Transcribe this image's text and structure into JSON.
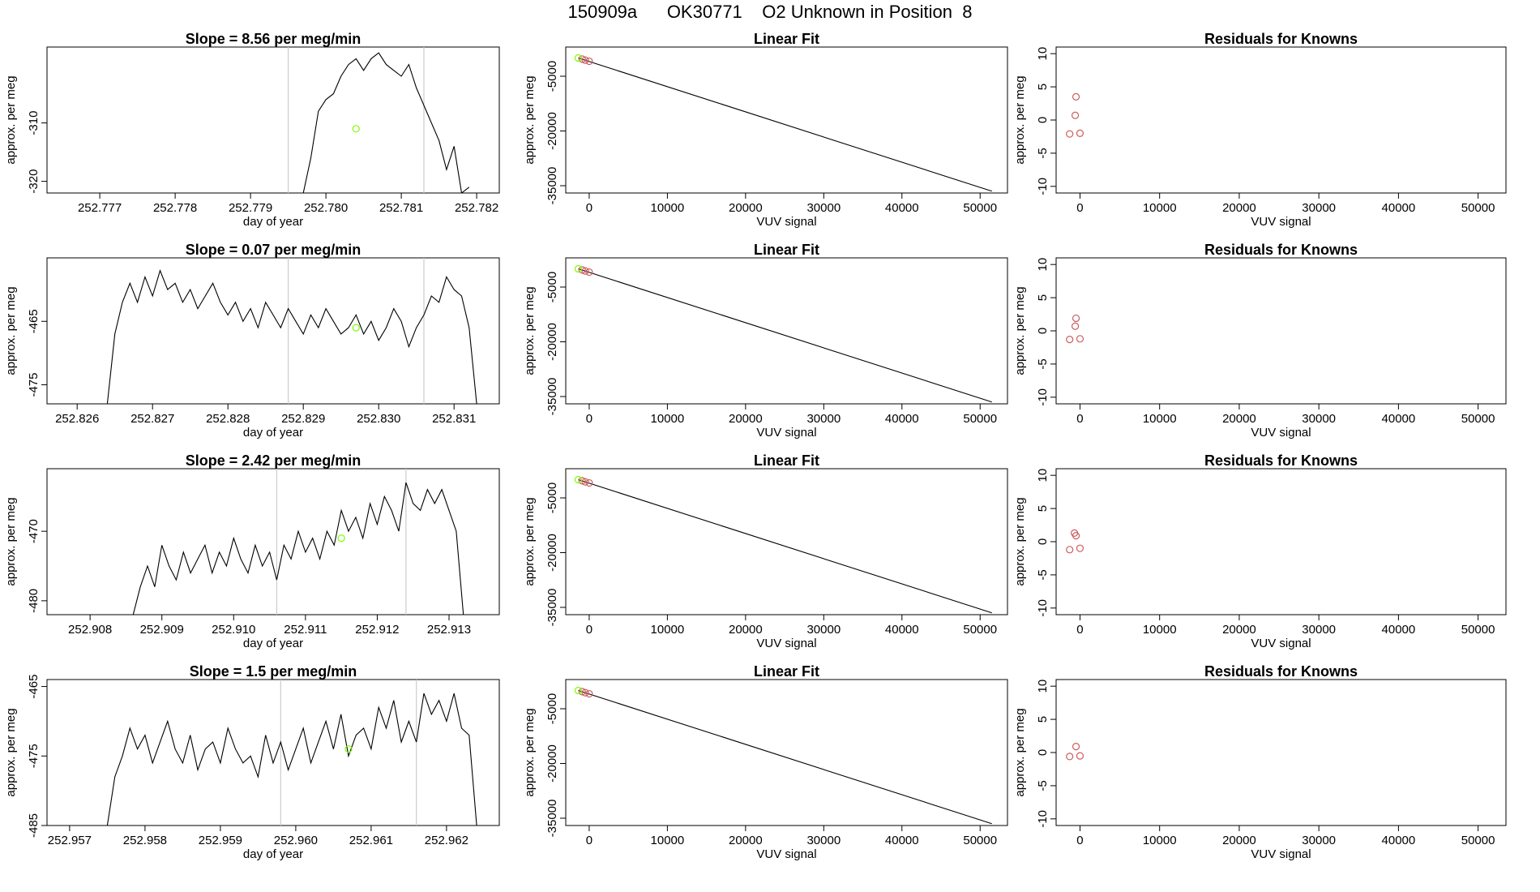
{
  "page_title": "150909a      OK30771    O2 Unknown in Position  8",
  "colors": {
    "trace": "#000000",
    "known_fit_point": "#cd5c5c",
    "unknown_point": "#7cfc00",
    "reference_marker": "#cccccc",
    "fit_line": "#000000"
  },
  "chart_data": [
    {
      "id": "row1-trace",
      "type": "line",
      "title": "Slope =  8.56  per meg/min",
      "xlabel": "day of year",
      "ylabel": "approx. per meg",
      "xlim": [
        252.7763,
        252.7823
      ],
      "ylim": [
        -322,
        -297
      ],
      "xticks": [
        "252.777",
        "252.778",
        "252.779",
        "252.780",
        "252.781",
        "252.782"
      ],
      "xtick_values": [
        252.777,
        252.778,
        252.779,
        252.78,
        252.781,
        252.782
      ],
      "yticks": [
        "-310",
        "-320"
      ],
      "ytick_values": [
        -310,
        -320
      ],
      "vlines": [
        252.7795,
        252.7813
      ],
      "unknown_point": {
        "x": 252.7804,
        "y": -311
      },
      "trace_x": [
        252.7797,
        252.7798,
        252.7799,
        252.78,
        252.7801,
        252.7802,
        252.7803,
        252.7804,
        252.7805,
        252.7806,
        252.7807,
        252.7808,
        252.7809,
        252.781,
        252.7811,
        252.7812,
        252.7813,
        252.7814,
        252.7815,
        252.7816,
        252.7817,
        252.7818,
        252.7819
      ],
      "trace_y": [
        -322,
        -316,
        -308,
        -306,
        -305,
        -302,
        -300,
        -299,
        -301,
        -299,
        -298,
        -300,
        -301,
        -302,
        -300,
        -304,
        -307,
        -310,
        -313,
        -318,
        -314,
        -322,
        -321
      ]
    },
    {
      "id": "row1-fit",
      "type": "scatter",
      "title": "Linear Fit",
      "xlabel": "VUV signal",
      "ylabel": "approx. per meg",
      "xlim": [
        -3000,
        53500
      ],
      "ylim": [
        -37000,
        3000
      ],
      "xticks": [
        "0",
        "10000",
        "20000",
        "30000",
        "40000",
        "50000"
      ],
      "xtick_values": [
        0,
        10000,
        20000,
        30000,
        40000,
        50000
      ],
      "yticks": [
        "-5000",
        "-20000",
        "-35000"
      ],
      "ytick_values": [
        -5000,
        -20000,
        -35000
      ],
      "fit_line": {
        "x": [
          -1400,
          51500
        ],
        "y": [
          0,
          -36500
        ]
      },
      "known_points": [
        {
          "x": -900,
          "y": -300
        },
        {
          "x": -500,
          "y": -600
        },
        {
          "x": 0,
          "y": -900
        }
      ],
      "unknown_point": {
        "x": -1400,
        "y": 0
      }
    },
    {
      "id": "row1-resid",
      "type": "scatter",
      "title": "Residuals for Knowns",
      "xlabel": "VUV signal",
      "ylabel": "approx. per meg",
      "xlim": [
        -3000,
        53500
      ],
      "ylim": [
        -11,
        11
      ],
      "xticks": [
        "0",
        "10000",
        "20000",
        "30000",
        "40000",
        "50000"
      ],
      "xtick_values": [
        0,
        10000,
        20000,
        30000,
        40000,
        50000
      ],
      "yticks": [
        "10",
        "5",
        "0",
        "-5",
        "-10"
      ],
      "ytick_values": [
        10,
        5,
        0,
        -5,
        -10
      ],
      "points": [
        {
          "x": -500,
          "y": 3.5
        },
        {
          "x": -600,
          "y": 0.7
        },
        {
          "x": -1300,
          "y": -2.1
        },
        {
          "x": 0,
          "y": -2
        }
      ]
    },
    {
      "id": "row2-trace",
      "type": "line",
      "title": "Slope =  0.07  per meg/min",
      "xlabel": "day of year",
      "ylabel": "approx. per meg",
      "xlim": [
        252.8256,
        252.8316
      ],
      "ylim": [
        -478,
        -455
      ],
      "xticks": [
        "252.826",
        "252.827",
        "252.828",
        "252.829",
        "252.830",
        "252.831"
      ],
      "xtick_values": [
        252.826,
        252.827,
        252.828,
        252.829,
        252.83,
        252.831
      ],
      "yticks": [
        "-465",
        "-475"
      ],
      "ytick_values": [
        -465,
        -475
      ],
      "vlines": [
        252.8288,
        252.8306
      ],
      "unknown_point": {
        "x": 252.8297,
        "y": -466
      },
      "trace_x": [
        252.8264,
        252.8265,
        252.8266,
        252.8267,
        252.8268,
        252.8269,
        252.827,
        252.8271,
        252.8272,
        252.8273,
        252.8274,
        252.8275,
        252.8276,
        252.8277,
        252.8278,
        252.8279,
        252.828,
        252.8281,
        252.8282,
        252.8283,
        252.8284,
        252.8285,
        252.8286,
        252.8287,
        252.8288,
        252.8289,
        252.829,
        252.8291,
        252.8292,
        252.8293,
        252.8294,
        252.8295,
        252.8296,
        252.8297,
        252.8298,
        252.8299,
        252.83,
        252.8301,
        252.8302,
        252.8303,
        252.8304,
        252.8305,
        252.8306,
        252.8307,
        252.8308,
        252.8309,
        252.831,
        252.8311,
        252.8312,
        252.8313
      ],
      "trace_y": [
        -478,
        -467,
        -462,
        -459,
        -462,
        -458,
        -461,
        -457,
        -460,
        -459,
        -462,
        -460,
        -463,
        -461,
        -459,
        -462,
        -464,
        -462,
        -465,
        -463,
        -466,
        -462,
        -464,
        -466,
        -463,
        -465,
        -467,
        -464,
        -466,
        -463,
        -465,
        -467,
        -466,
        -464,
        -467,
        -465,
        -468,
        -466,
        -463,
        -465,
        -469,
        -466,
        -464,
        -461,
        -462,
        -458,
        -460,
        -461,
        -466,
        -478
      ]
    },
    {
      "id": "row2-fit",
      "type": "scatter",
      "title": "Linear Fit",
      "xlabel": "VUV signal",
      "ylabel": "approx. per meg",
      "xlim": [
        -3000,
        53500
      ],
      "ylim": [
        -37000,
        3000
      ],
      "xticks": [
        "0",
        "10000",
        "20000",
        "30000",
        "40000",
        "50000"
      ],
      "xtick_values": [
        0,
        10000,
        20000,
        30000,
        40000,
        50000
      ],
      "yticks": [
        "-5000",
        "-20000",
        "-35000"
      ],
      "ytick_values": [
        -5000,
        -20000,
        -35000
      ],
      "fit_line": {
        "x": [
          -1400,
          51500
        ],
        "y": [
          0,
          -36500
        ]
      },
      "known_points": [
        {
          "x": -900,
          "y": -300
        },
        {
          "x": -500,
          "y": -600
        },
        {
          "x": 0,
          "y": -900
        }
      ],
      "unknown_point": {
        "x": -1400,
        "y": 0
      }
    },
    {
      "id": "row2-resid",
      "type": "scatter",
      "title": "Residuals for Knowns",
      "xlabel": "VUV signal",
      "ylabel": "approx. per meg",
      "xlim": [
        -3000,
        53500
      ],
      "ylim": [
        -11,
        11
      ],
      "xticks": [
        "0",
        "10000",
        "20000",
        "30000",
        "40000",
        "50000"
      ],
      "xtick_values": [
        0,
        10000,
        20000,
        30000,
        40000,
        50000
      ],
      "yticks": [
        "10",
        "5",
        "0",
        "-5",
        "-10"
      ],
      "ytick_values": [
        10,
        5,
        0,
        -5,
        -10
      ],
      "points": [
        {
          "x": -500,
          "y": 1.9
        },
        {
          "x": -600,
          "y": 0.7
        },
        {
          "x": -1300,
          "y": -1.3
        },
        {
          "x": 0,
          "y": -1.2
        }
      ]
    },
    {
      "id": "row3-trace",
      "type": "line",
      "title": "Slope =  2.42  per meg/min",
      "xlabel": "day of year",
      "ylabel": "approx. per meg",
      "xlim": [
        252.9074,
        252.9137
      ],
      "ylim": [
        -482,
        -461
      ],
      "xticks": [
        "252.908",
        "252.909",
        "252.910",
        "252.911",
        "252.912",
        "252.913"
      ],
      "xtick_values": [
        252.908,
        252.909,
        252.91,
        252.911,
        252.912,
        252.913
      ],
      "yticks": [
        "-470",
        "-480"
      ],
      "ytick_values": [
        -470,
        -480
      ],
      "vlines": [
        252.9106,
        252.9124
      ],
      "unknown_point": {
        "x": 252.9115,
        "y": -471
      },
      "trace_x": [
        252.9086,
        252.9087,
        252.9088,
        252.9089,
        252.909,
        252.9091,
        252.9092,
        252.9093,
        252.9094,
        252.9095,
        252.9096,
        252.9097,
        252.9098,
        252.9099,
        252.91,
        252.9101,
        252.9102,
        252.9103,
        252.9104,
        252.9105,
        252.9106,
        252.9107,
        252.9108,
        252.9109,
        252.911,
        252.9111,
        252.9112,
        252.9113,
        252.9114,
        252.9115,
        252.9116,
        252.9117,
        252.9118,
        252.9119,
        252.912,
        252.9121,
        252.9122,
        252.9123,
        252.9124,
        252.9125,
        252.9126,
        252.9127,
        252.9128,
        252.9129,
        252.913,
        252.9131,
        252.9132
      ],
      "trace_y": [
        -482,
        -478,
        -475,
        -478,
        -472,
        -475,
        -477,
        -473,
        -476,
        -474,
        -472,
        -476,
        -473,
        -475,
        -471,
        -474,
        -476,
        -472,
        -475,
        -473,
        -477,
        -472,
        -474,
        -470,
        -473,
        -471,
        -474,
        -470,
        -472,
        -467,
        -470,
        -468,
        -471,
        -466,
        -469,
        -465,
        -467,
        -470,
        -463,
        -466,
        -467,
        -464,
        -466,
        -464,
        -467,
        -470,
        -482
      ]
    },
    {
      "id": "row3-fit",
      "type": "scatter",
      "title": "Linear Fit",
      "xlabel": "VUV signal",
      "ylabel": "approx. per meg",
      "xlim": [
        -3000,
        53500
      ],
      "ylim": [
        -37000,
        3000
      ],
      "xticks": [
        "0",
        "10000",
        "20000",
        "30000",
        "40000",
        "50000"
      ],
      "xtick_values": [
        0,
        10000,
        20000,
        30000,
        40000,
        50000
      ],
      "yticks": [
        "-5000",
        "-20000",
        "-35000"
      ],
      "ytick_values": [
        -5000,
        -20000,
        -35000
      ],
      "fit_line": {
        "x": [
          -1400,
          51500
        ],
        "y": [
          0,
          -36500
        ]
      },
      "known_points": [
        {
          "x": -900,
          "y": -300
        },
        {
          "x": -500,
          "y": -600
        },
        {
          "x": 0,
          "y": -900
        }
      ],
      "unknown_point": {
        "x": -1400,
        "y": 0
      }
    },
    {
      "id": "row3-resid",
      "type": "scatter",
      "title": "Residuals for Knowns",
      "xlabel": "VUV signal",
      "ylabel": "approx. per meg",
      "xlim": [
        -3000,
        53500
      ],
      "ylim": [
        -11,
        11
      ],
      "xticks": [
        "0",
        "10000",
        "20000",
        "30000",
        "40000",
        "50000"
      ],
      "xtick_values": [
        0,
        10000,
        20000,
        30000,
        40000,
        50000
      ],
      "yticks": [
        "10",
        "5",
        "0",
        "-5",
        "-10"
      ],
      "ytick_values": [
        10,
        5,
        0,
        -5,
        -10
      ],
      "points": [
        {
          "x": -700,
          "y": 1.3
        },
        {
          "x": -500,
          "y": 0.9
        },
        {
          "x": -1300,
          "y": -1.2
        },
        {
          "x": 0,
          "y": -1
        }
      ]
    },
    {
      "id": "row4-trace",
      "type": "line",
      "title": "Slope =  1.5  per meg/min",
      "xlabel": "day of year",
      "ylabel": "approx. per meg",
      "xlim": [
        252.9567,
        252.9627
      ],
      "ylim": [
        -485,
        -464
      ],
      "xticks": [
        "252.957",
        "252.958",
        "252.959",
        "252.960",
        "252.961",
        "252.962"
      ],
      "xtick_values": [
        252.957,
        252.958,
        252.959,
        252.96,
        252.961,
        252.962
      ],
      "yticks": [
        "-465",
        "-475",
        "-485"
      ],
      "ytick_values": [
        -465,
        -475,
        -485
      ],
      "vlines": [
        252.9598,
        252.9616
      ],
      "unknown_point": {
        "x": 252.9607,
        "y": -474
      },
      "trace_x": [
        252.9575,
        252.9576,
        252.9577,
        252.9578,
        252.9579,
        252.958,
        252.9581,
        252.9582,
        252.9583,
        252.9584,
        252.9585,
        252.9586,
        252.9587,
        252.9588,
        252.9589,
        252.959,
        252.9591,
        252.9592,
        252.9593,
        252.9594,
        252.9595,
        252.9596,
        252.9597,
        252.9598,
        252.9599,
        252.96,
        252.9601,
        252.9602,
        252.9603,
        252.9604,
        252.9605,
        252.9606,
        252.9607,
        252.9608,
        252.9609,
        252.961,
        252.9611,
        252.9612,
        252.9613,
        252.9614,
        252.9615,
        252.9616,
        252.9617,
        252.9618,
        252.9619,
        252.962,
        252.9621,
        252.9622,
        252.9623,
        252.9624
      ],
      "trace_y": [
        -485,
        -478,
        -475,
        -471,
        -474,
        -472,
        -476,
        -473,
        -470,
        -474,
        -476,
        -472,
        -477,
        -474,
        -473,
        -476,
        -471,
        -474,
        -476,
        -475,
        -478,
        -472,
        -476,
        -473,
        -477,
        -474,
        -471,
        -476,
        -473,
        -470,
        -474,
        -469,
        -475,
        -472,
        -471,
        -474,
        -468,
        -471,
        -467,
        -473,
        -470,
        -473,
        -466,
        -469,
        -467,
        -470,
        -466,
        -471,
        -472,
        -485
      ]
    },
    {
      "id": "row4-fit",
      "type": "scatter",
      "title": "Linear Fit",
      "xlabel": "VUV signal",
      "ylabel": "approx. per meg",
      "xlim": [
        -3000,
        53500
      ],
      "ylim": [
        -37000,
        3000
      ],
      "xticks": [
        "0",
        "10000",
        "20000",
        "30000",
        "40000",
        "50000"
      ],
      "xtick_values": [
        0,
        10000,
        20000,
        30000,
        40000,
        50000
      ],
      "yticks": [
        "-5000",
        "-20000",
        "-35000"
      ],
      "ytick_values": [
        -5000,
        -20000,
        -35000
      ],
      "fit_line": {
        "x": [
          -1400,
          51500
        ],
        "y": [
          0,
          -36500
        ]
      },
      "known_points": [
        {
          "x": -900,
          "y": -300
        },
        {
          "x": -500,
          "y": -600
        },
        {
          "x": 0,
          "y": -900
        }
      ],
      "unknown_point": {
        "x": -1400,
        "y": 0
      }
    },
    {
      "id": "row4-resid",
      "type": "scatter",
      "title": "Residuals for Knowns",
      "xlabel": "VUV signal",
      "ylabel": "approx. per meg",
      "xlim": [
        -3000,
        53500
      ],
      "ylim": [
        -11,
        11
      ],
      "xticks": [
        "0",
        "10000",
        "20000",
        "30000",
        "40000",
        "50000"
      ],
      "xtick_values": [
        0,
        10000,
        20000,
        30000,
        40000,
        50000
      ],
      "yticks": [
        "10",
        "5",
        "0",
        "-5",
        "-10"
      ],
      "ytick_values": [
        10,
        5,
        0,
        -5,
        -10
      ],
      "points": [
        {
          "x": -500,
          "y": 0.9
        },
        {
          "x": -1300,
          "y": -0.6
        },
        {
          "x": 0,
          "y": -0.5
        }
      ]
    }
  ]
}
